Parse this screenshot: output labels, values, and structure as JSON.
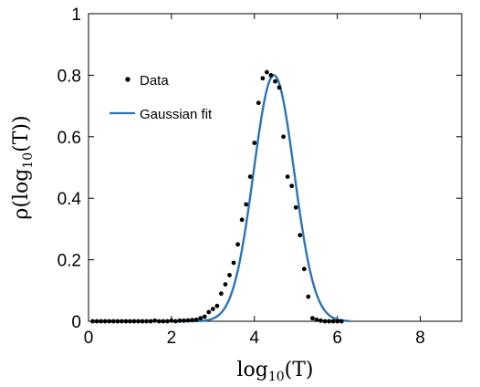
{
  "chart_data": {
    "type": "scatter",
    "xlabel_base": "log",
    "xlabel_sub": "10",
    "xlabel_arg": "(T)",
    "ylabel_head": "ρ(log",
    "ylabel_sub": "10",
    "ylabel_tail": "(T))",
    "xlim": [
      0,
      9
    ],
    "ylim": [
      0,
      1
    ],
    "xticks": [
      "0",
      "2",
      "4",
      "6",
      "8"
    ],
    "yticks": [
      "0",
      "0.2",
      "0.4",
      "0.6",
      "0.8",
      "1"
    ],
    "legend_position": "top-left",
    "grid": false,
    "series": [
      {
        "name": "Data",
        "kind": "points",
        "color": "#000000",
        "x": [
          0.1,
          0.2,
          0.3,
          0.4,
          0.5,
          0.6,
          0.7,
          0.8,
          0.9,
          1.0,
          1.1,
          1.2,
          1.3,
          1.4,
          1.5,
          1.6,
          1.7,
          1.8,
          1.9,
          2.0,
          2.1,
          2.2,
          2.3,
          2.4,
          2.5,
          2.6,
          2.7,
          2.8,
          2.9,
          3.0,
          3.1,
          3.2,
          3.3,
          3.4,
          3.5,
          3.6,
          3.7,
          3.8,
          3.9,
          4.0,
          4.1,
          4.2,
          4.3,
          4.4,
          4.5,
          4.6,
          4.7,
          4.8,
          4.9,
          5.0,
          5.1,
          5.2,
          5.3,
          5.4,
          5.5,
          5.6,
          5.7,
          5.8,
          5.9,
          6.0,
          6.1
        ],
        "y": [
          0,
          0,
          0,
          0,
          0,
          0,
          0,
          0,
          0,
          0,
          0,
          0,
          0,
          0,
          0,
          0.002,
          0,
          0,
          0,
          0.002,
          0,
          0.002,
          0.002,
          0.003,
          0.004,
          0.005,
          0.01,
          0.015,
          0.03,
          0.04,
          0.05,
          0.09,
          0.12,
          0.15,
          0.19,
          0.25,
          0.33,
          0.38,
          0.47,
          0.58,
          0.71,
          0.79,
          0.81,
          0.8,
          0.78,
          0.76,
          0.6,
          0.47,
          0.44,
          0.37,
          0.28,
          0.17,
          0.08,
          0.01,
          0.005,
          0.002,
          0,
          0,
          0,
          0,
          0
        ]
      },
      {
        "name": "Gaussian fit",
        "kind": "line",
        "color": "#2a74b8",
        "mean": 4.47,
        "sd": 0.49,
        "peak": 0.8,
        "x_start": 2.0,
        "x_end": 6.3
      }
    ]
  }
}
